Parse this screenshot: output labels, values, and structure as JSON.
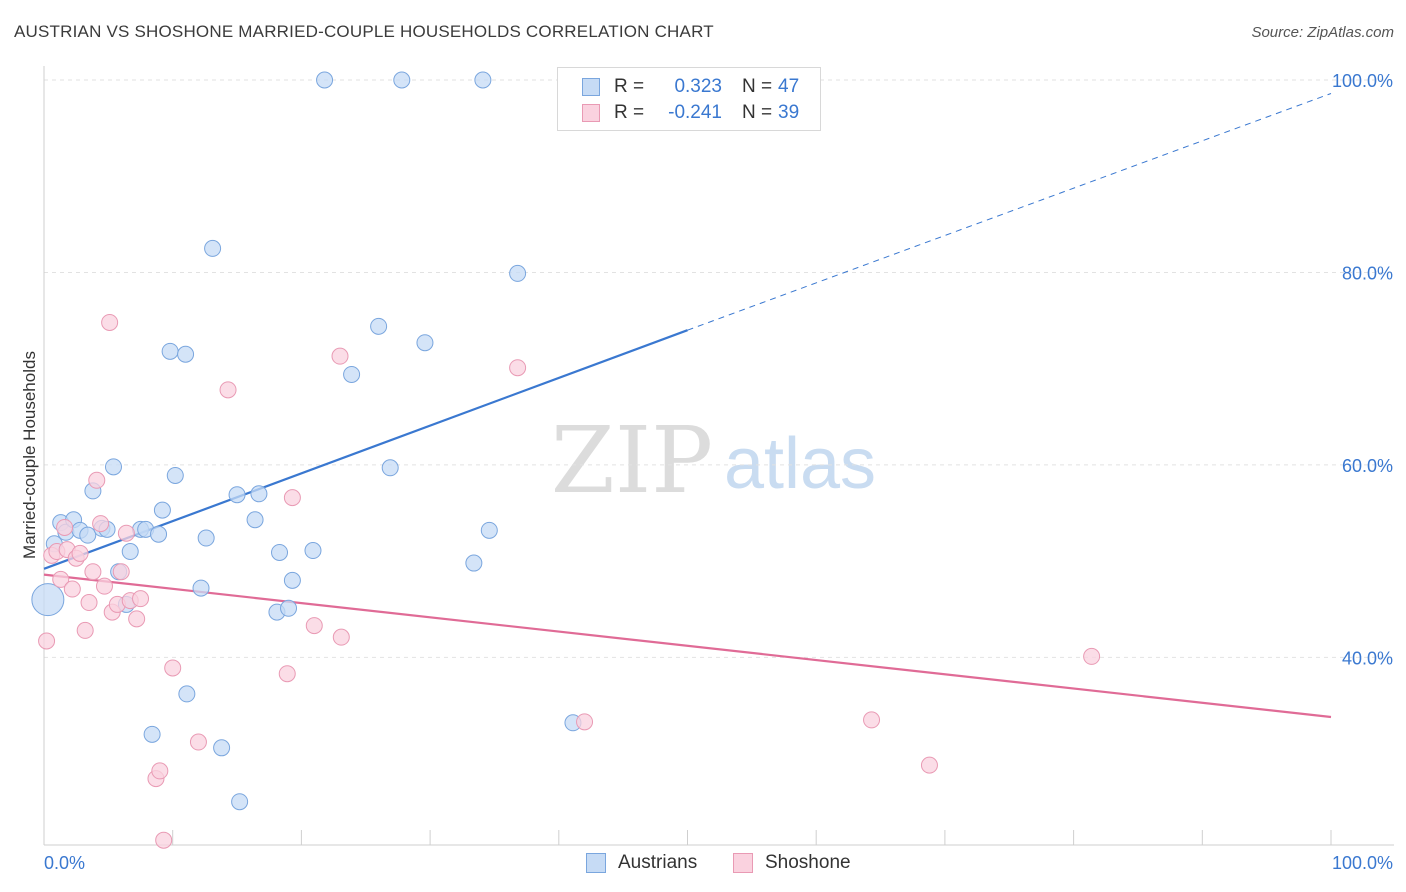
{
  "header": {
    "title": "AUSTRIAN VS SHOSHONE MARRIED-COUPLE HOUSEHOLDS CORRELATION CHART",
    "source": "Source: ZipAtlas.com"
  },
  "legend": {
    "rows": [
      {
        "r_label": "R =",
        "r_value": "0.323",
        "n_label": "N =",
        "n_value": "47",
        "color": "#a9c8f0"
      },
      {
        "r_label": "R =",
        "r_value": "-0.241",
        "n_label": "N =",
        "n_value": "39",
        "color": "#f5b8cb"
      }
    ]
  },
  "watermark": {
    "zip": "ZIP",
    "atlas": "atlas"
  },
  "chart_data": {
    "type": "scatter",
    "title": "AUSTRIAN VS SHOSHONE MARRIED-COUPLE HOUSEHOLDS CORRELATION CHART",
    "xlabel": "",
    "ylabel": "Married-couple Households",
    "xlim": [
      0,
      100
    ],
    "ylim": [
      20.5,
      100
    ],
    "x_tick_labels": [
      "0.0%",
      "100.0%"
    ],
    "y_ticks": [
      40,
      60,
      80,
      100
    ],
    "y_tick_labels": [
      "40.0%",
      "60.0%",
      "80.0%",
      "100.0%"
    ],
    "grid": true,
    "legend_position": "top-center",
    "colors": {
      "austrians": "#3a78d0",
      "shoshone": "#e06b96",
      "austrians_fill": "#a9c8f0",
      "shoshone_fill": "#f5b8cb"
    },
    "series": [
      {
        "name": "Austrians",
        "r": 0.323,
        "n": 47,
        "trend": {
          "x0": 0,
          "y0": 49.2,
          "x1": 50,
          "y1": 74.0,
          "dashed_to_x": 100,
          "dashed_to_y": 98.6
        },
        "points": [
          [
            0.3,
            46.0
          ],
          [
            0.8,
            51.8
          ],
          [
            1.3,
            54.0
          ],
          [
            1.7,
            53.0
          ],
          [
            2.3,
            54.3
          ],
          [
            2.8,
            53.2
          ],
          [
            3.4,
            52.7
          ],
          [
            3.8,
            57.3
          ],
          [
            4.5,
            53.4
          ],
          [
            4.9,
            53.3
          ],
          [
            5.4,
            59.8
          ],
          [
            5.8,
            48.9
          ],
          [
            6.4,
            45.5
          ],
          [
            6.7,
            51.0
          ],
          [
            7.5,
            53.3
          ],
          [
            7.9,
            53.3
          ],
          [
            8.4,
            32.0
          ],
          [
            8.9,
            52.8
          ],
          [
            9.2,
            55.3
          ],
          [
            9.8,
            71.8
          ],
          [
            10.2,
            58.9
          ],
          [
            11.0,
            71.5
          ],
          [
            11.1,
            36.2
          ],
          [
            12.2,
            47.2
          ],
          [
            12.6,
            52.4
          ],
          [
            13.1,
            82.5
          ],
          [
            13.8,
            30.6
          ],
          [
            15.0,
            56.9
          ],
          [
            15.2,
            25.0
          ],
          [
            16.4,
            54.3
          ],
          [
            16.7,
            57.0
          ],
          [
            18.1,
            44.7
          ],
          [
            18.3,
            50.9
          ],
          [
            19.0,
            45.1
          ],
          [
            19.3,
            48.0
          ],
          [
            20.9,
            51.1
          ],
          [
            21.8,
            100.0
          ],
          [
            23.9,
            69.4
          ],
          [
            26.0,
            74.4
          ],
          [
            26.9,
            59.7
          ],
          [
            27.8,
            100.0
          ],
          [
            29.6,
            72.7
          ],
          [
            33.4,
            49.8
          ],
          [
            34.1,
            100.0
          ],
          [
            34.6,
            53.2
          ],
          [
            36.8,
            79.9
          ],
          [
            41.1,
            33.2
          ]
        ]
      },
      {
        "name": "Shoshone",
        "r": -0.241,
        "n": 39,
        "trend": {
          "x0": 0,
          "y0": 48.6,
          "x1": 100,
          "y1": 33.8
        },
        "points": [
          [
            0.2,
            41.7
          ],
          [
            0.6,
            50.6
          ],
          [
            1.0,
            51.0
          ],
          [
            1.3,
            48.1
          ],
          [
            1.6,
            53.5
          ],
          [
            1.8,
            51.2
          ],
          [
            2.2,
            47.1
          ],
          [
            2.5,
            50.3
          ],
          [
            2.8,
            50.8
          ],
          [
            3.2,
            42.8
          ],
          [
            3.5,
            45.7
          ],
          [
            3.8,
            48.9
          ],
          [
            4.1,
            58.4
          ],
          [
            4.4,
            53.9
          ],
          [
            4.7,
            47.4
          ],
          [
            5.1,
            74.8
          ],
          [
            5.3,
            44.7
          ],
          [
            5.7,
            45.5
          ],
          [
            6.0,
            48.9
          ],
          [
            6.4,
            52.9
          ],
          [
            6.7,
            45.9
          ],
          [
            7.2,
            44.0
          ],
          [
            7.5,
            46.1
          ],
          [
            8.7,
            27.4
          ],
          [
            9.0,
            28.2
          ],
          [
            9.3,
            21.0
          ],
          [
            10.0,
            38.9
          ],
          [
            12.0,
            31.2
          ],
          [
            14.3,
            67.8
          ],
          [
            18.9,
            38.3
          ],
          [
            19.3,
            56.6
          ],
          [
            21.0,
            43.3
          ],
          [
            23.0,
            71.3
          ],
          [
            23.1,
            42.1
          ],
          [
            36.8,
            70.1
          ],
          [
            42.0,
            33.3
          ],
          [
            64.3,
            33.5
          ],
          [
            68.8,
            28.8
          ],
          [
            81.4,
            40.1
          ]
        ]
      }
    ]
  },
  "bottom_legend": {
    "austrians": "Austrians",
    "shoshone": "Shoshone"
  }
}
